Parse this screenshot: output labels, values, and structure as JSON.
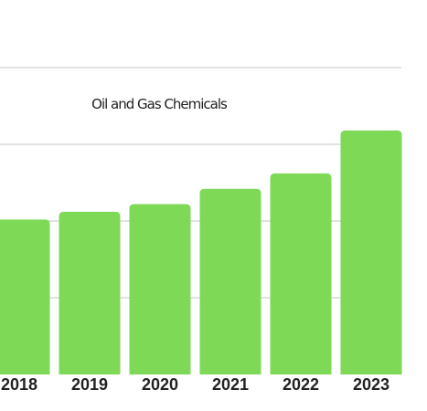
{
  "chart_data": {
    "type": "bar",
    "title": "Oil and Gas Chemicals",
    "categories": [
      "2018",
      "2019",
      "2020",
      "2021",
      "2022",
      "2023"
    ],
    "values": [
      10.1,
      10.6,
      11.1,
      12.1,
      13.1,
      15.9
    ],
    "ylim": [
      0,
      20
    ],
    "grid": true,
    "bar_color": "#7ed957",
    "grid_color": "#d0d0d0",
    "xlabel": "",
    "ylabel": ""
  }
}
